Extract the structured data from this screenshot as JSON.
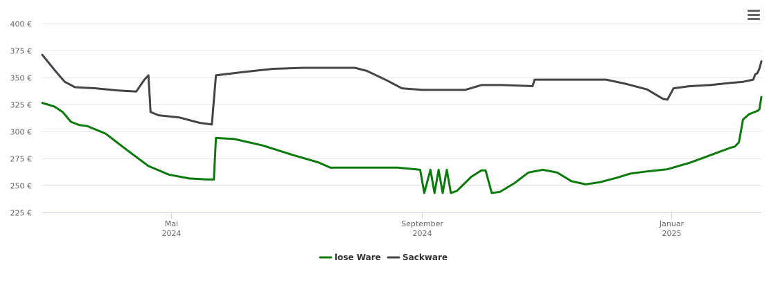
{
  "menu": {
    "icon": "hamburger-menu-icon"
  },
  "chart_data": {
    "type": "line",
    "y_ticks": [
      225,
      250,
      275,
      300,
      325,
      350,
      375,
      400
    ],
    "y_tick_labels": [
      "225 €",
      "250 €",
      "275 €",
      "300 €",
      "325 €",
      "350 €",
      "375 €",
      "400 €"
    ],
    "ylim": [
      225,
      400
    ],
    "xlim": [
      "2024-02-28",
      "2025-02-14"
    ],
    "x_ticks": [
      {
        "date": "2024-05-01",
        "month": "Mai",
        "year": "2024"
      },
      {
        "date": "2024-09-01",
        "month": "September",
        "year": "2024"
      },
      {
        "date": "2025-01-01",
        "month": "Januar",
        "year": "2025"
      }
    ],
    "grid": true,
    "legend_position": "bottom-center",
    "series": [
      {
        "name": "lose Ware",
        "color": "#0a7a0a",
        "points": [
          [
            "2024-02-28",
            326.5
          ],
          [
            "2024-03-05",
            323
          ],
          [
            "2024-03-09",
            318
          ],
          [
            "2024-03-13",
            309
          ],
          [
            "2024-03-17",
            306
          ],
          [
            "2024-03-21",
            305
          ],
          [
            "2024-03-30",
            298
          ],
          [
            "2024-04-10",
            282
          ],
          [
            "2024-04-20",
            268
          ],
          [
            "2024-04-30",
            260
          ],
          [
            "2024-05-10",
            256.5
          ],
          [
            "2024-05-19",
            255.5
          ],
          [
            "2024-05-22",
            255.5
          ],
          [
            "2024-05-23",
            294
          ],
          [
            "2024-06-01",
            293
          ],
          [
            "2024-06-15",
            287
          ],
          [
            "2024-06-30",
            278
          ],
          [
            "2024-07-12",
            271.5
          ],
          [
            "2024-07-15",
            269
          ],
          [
            "2024-07-18",
            266.5
          ],
          [
            "2024-08-15",
            266.5
          ],
          [
            "2024-08-20",
            266.5
          ],
          [
            "2024-08-31",
            264.5
          ],
          [
            "2024-09-02",
            243
          ],
          [
            "2024-09-05",
            264.5
          ],
          [
            "2024-09-07",
            243
          ],
          [
            "2024-09-09",
            264.5
          ],
          [
            "2024-09-11",
            243
          ],
          [
            "2024-09-13",
            264.5
          ],
          [
            "2024-09-15",
            243
          ],
          [
            "2024-09-18",
            245
          ],
          [
            "2024-09-25",
            258
          ],
          [
            "2024-09-30",
            264
          ],
          [
            "2024-10-02",
            264
          ],
          [
            "2024-10-05",
            243
          ],
          [
            "2024-10-09",
            244
          ],
          [
            "2024-10-16",
            252
          ],
          [
            "2024-10-23",
            262
          ],
          [
            "2024-10-30",
            264.5
          ],
          [
            "2024-11-06",
            262
          ],
          [
            "2024-11-13",
            254
          ],
          [
            "2024-11-20",
            251
          ],
          [
            "2024-11-27",
            253
          ],
          [
            "2024-12-05",
            257
          ],
          [
            "2024-12-12",
            261
          ],
          [
            "2024-12-20",
            263
          ],
          [
            "2024-12-30",
            265
          ],
          [
            "2025-01-10",
            271
          ],
          [
            "2025-01-20",
            278
          ],
          [
            "2025-01-30",
            285
          ],
          [
            "2025-02-01",
            286
          ],
          [
            "2025-02-03",
            290
          ],
          [
            "2025-02-05",
            311
          ],
          [
            "2025-02-08",
            316
          ],
          [
            "2025-02-12",
            319
          ],
          [
            "2025-02-13",
            320.5
          ],
          [
            "2025-02-14",
            332
          ]
        ]
      },
      {
        "name": "Sackware",
        "color": "#434348",
        "points": [
          [
            "2024-02-28",
            371
          ],
          [
            "2024-03-05",
            357
          ],
          [
            "2024-03-10",
            346
          ],
          [
            "2024-03-15",
            341
          ],
          [
            "2024-03-25",
            340
          ],
          [
            "2024-04-05",
            338
          ],
          [
            "2024-04-14",
            337
          ],
          [
            "2024-04-18",
            348
          ],
          [
            "2024-04-20",
            352
          ],
          [
            "2024-04-21",
            318
          ],
          [
            "2024-04-25",
            315
          ],
          [
            "2024-05-05",
            313
          ],
          [
            "2024-05-15",
            308
          ],
          [
            "2024-05-21",
            306.5
          ],
          [
            "2024-05-23",
            352
          ],
          [
            "2024-06-05",
            355
          ],
          [
            "2024-06-20",
            358
          ],
          [
            "2024-07-05",
            359
          ],
          [
            "2024-07-30",
            359
          ],
          [
            "2024-08-05",
            356
          ],
          [
            "2024-08-15",
            347
          ],
          [
            "2024-08-22",
            340
          ],
          [
            "2024-09-01",
            338.5
          ],
          [
            "2024-09-22",
            338.5
          ],
          [
            "2024-09-30",
            343
          ],
          [
            "2024-10-10",
            343
          ],
          [
            "2024-10-25",
            342
          ],
          [
            "2024-10-26",
            348
          ],
          [
            "2024-11-30",
            348
          ],
          [
            "2024-12-10",
            344
          ],
          [
            "2024-12-20",
            339
          ],
          [
            "2024-12-28",
            330
          ],
          [
            "2024-12-30",
            329.5
          ],
          [
            "2025-01-02",
            340
          ],
          [
            "2025-01-10",
            342
          ],
          [
            "2025-01-20",
            343
          ],
          [
            "2025-01-30",
            345
          ],
          [
            "2025-02-05",
            346
          ],
          [
            "2025-02-10",
            348
          ],
          [
            "2025-02-11",
            353
          ],
          [
            "2025-02-12",
            354
          ],
          [
            "2025-02-13",
            358
          ],
          [
            "2025-02-14",
            365
          ]
        ]
      }
    ]
  }
}
